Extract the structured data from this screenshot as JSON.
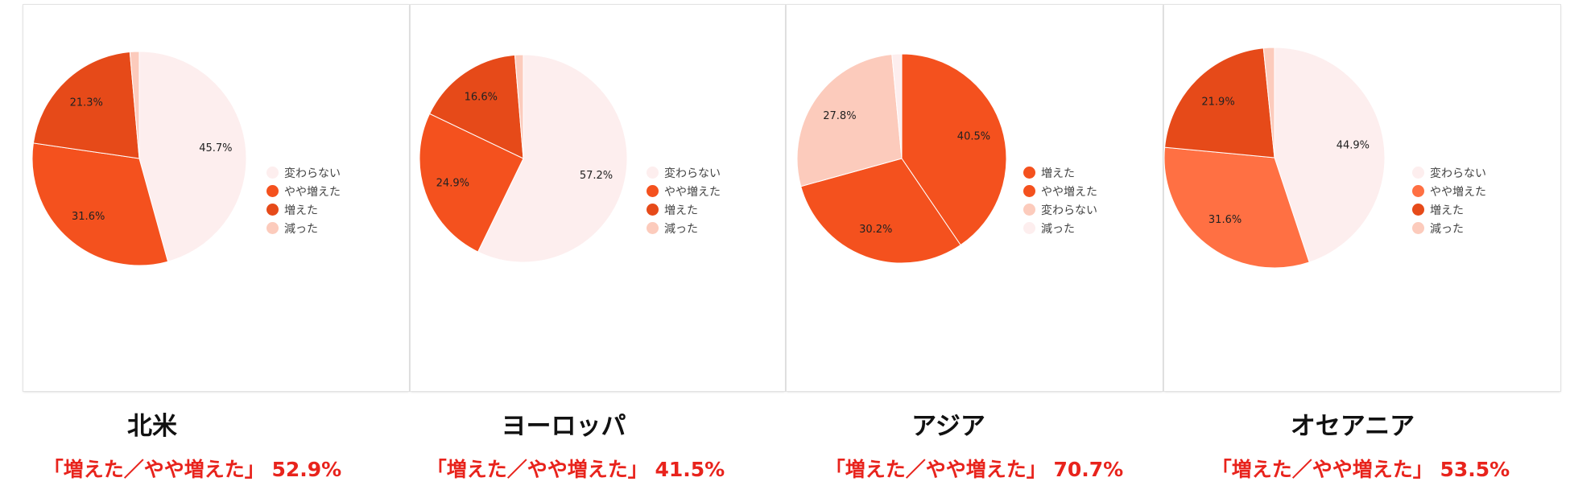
{
  "chart_data": [
    {
      "type": "pie",
      "region": "北米",
      "summary": "「増えた／やや増えた」 52.9%",
      "legend": [
        {
          "label": "変わらない",
          "color": "#fdeeee"
        },
        {
          "label": "やや増えた",
          "color": "#f4511e"
        },
        {
          "label": "増えた",
          "color": "#e64a19"
        },
        {
          "label": "減った",
          "color": "#fccbbc"
        }
      ],
      "slices": [
        {
          "label": "変わらない",
          "value": 45.7,
          "text": "45.7%",
          "color": "#fdeeee"
        },
        {
          "label": "やや増えた",
          "value": 31.6,
          "text": "31.6%",
          "color": "#f4511e"
        },
        {
          "label": "増えた",
          "value": 21.3,
          "text": "21.3%",
          "color": "#e64a19"
        },
        {
          "label": "減った",
          "value": 1.4,
          "text": "",
          "color": "#fccbbc"
        }
      ]
    },
    {
      "type": "pie",
      "region": "ヨーロッパ",
      "summary": "「増えた／やや増えた」 41.5%",
      "legend": [
        {
          "label": "変わらない",
          "color": "#fdeeee"
        },
        {
          "label": "やや増えた",
          "color": "#f4511e"
        },
        {
          "label": "増えた",
          "color": "#e64a19"
        },
        {
          "label": "減った",
          "color": "#fccbbc"
        }
      ],
      "slices": [
        {
          "label": "変わらない",
          "value": 57.2,
          "text": "57.2%",
          "color": "#fdeeee"
        },
        {
          "label": "やや増えた",
          "value": 24.9,
          "text": "24.9%",
          "color": "#f4511e"
        },
        {
          "label": "増えた",
          "value": 16.6,
          "text": "16.6%",
          "color": "#e64a19"
        },
        {
          "label": "減った",
          "value": 1.3,
          "text": "",
          "color": "#fccbbc"
        }
      ]
    },
    {
      "type": "pie",
      "region": "アジア",
      "summary": "「増えた／やや増えた」 70.7%",
      "legend": [
        {
          "label": "増えた",
          "color": "#f4511e"
        },
        {
          "label": "やや増えた",
          "color": "#f4511e"
        },
        {
          "label": "変わらない",
          "color": "#fccbbc"
        },
        {
          "label": "減った",
          "color": "#fdeeee"
        }
      ],
      "slices": [
        {
          "label": "増えた",
          "value": 40.5,
          "text": "40.5%",
          "color": "#f4511e"
        },
        {
          "label": "やや増えた",
          "value": 30.2,
          "text": "30.2%",
          "color": "#f4511e"
        },
        {
          "label": "変わらない",
          "value": 27.8,
          "text": "27.8%",
          "color": "#fccbbc"
        },
        {
          "label": "減った",
          "value": 1.5,
          "text": "",
          "color": "#fdeeee"
        }
      ]
    },
    {
      "type": "pie",
      "region": "オセアニア",
      "summary": "「増えた／やや増えた」 53.5%",
      "legend": [
        {
          "label": "変わらない",
          "color": "#fdeeee"
        },
        {
          "label": "やや増えた",
          "color": "#ff7043"
        },
        {
          "label": "増えた",
          "color": "#e64a19"
        },
        {
          "label": "減った",
          "color": "#fccbbc"
        }
      ],
      "slices": [
        {
          "label": "変わらない",
          "value": 44.9,
          "text": "44.9%",
          "color": "#fdeeee"
        },
        {
          "label": "やや増えた",
          "value": 31.6,
          "text": "31.6%",
          "color": "#ff7043"
        },
        {
          "label": "増えた",
          "value": 21.9,
          "text": "21.9%",
          "color": "#e64a19"
        },
        {
          "label": "減った",
          "value": 1.6,
          "text": "",
          "color": "#fccbbc"
        }
      ]
    }
  ]
}
